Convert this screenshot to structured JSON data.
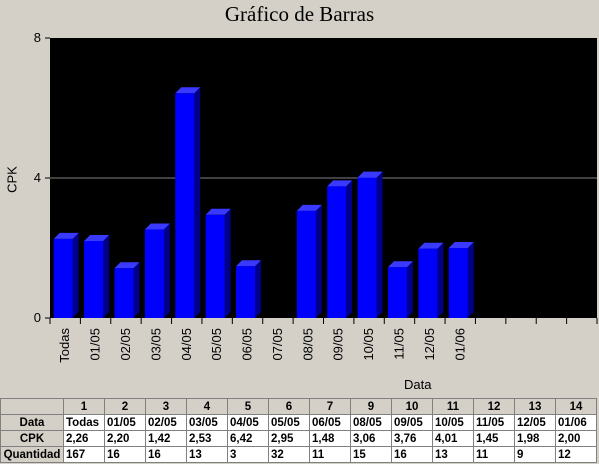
{
  "chart_data": {
    "type": "bar",
    "title": "Gráfico de Barras",
    "xlabel": "Data",
    "ylabel": "CPK",
    "ylim": [
      0,
      8
    ],
    "yticks": [
      0,
      4,
      8
    ],
    "categories": [
      "Todas",
      "01/05",
      "02/05",
      "03/05",
      "04/05",
      "05/05",
      "06/05",
      "07/05",
      "08/05",
      "09/05",
      "10/05",
      "11/05",
      "12/05",
      "01/06",
      "",
      "",
      "",
      ""
    ],
    "values": [
      2.26,
      2.2,
      1.42,
      2.53,
      6.42,
      2.95,
      1.48,
      null,
      3.06,
      3.76,
      4.01,
      1.45,
      1.98,
      2.0,
      null,
      null,
      null,
      null
    ],
    "colors": {
      "plot_bg": "#000000",
      "bar": "#0000ff",
      "bar_side": "#00008b",
      "bar_top": "#3a3aff",
      "grid": "#808080"
    }
  },
  "table": {
    "row_headers": [
      "Data",
      "CPK",
      "Quantidad"
    ],
    "columns": [
      {
        "n": "1",
        "data": "Todas",
        "cpk": "2,26",
        "qtd": "167"
      },
      {
        "n": "2",
        "data": "01/05",
        "cpk": "2,20",
        "qtd": "16"
      },
      {
        "n": "3",
        "data": "02/05",
        "cpk": "1,42",
        "qtd": "16"
      },
      {
        "n": "4",
        "data": "03/05",
        "cpk": "2,53",
        "qtd": "13"
      },
      {
        "n": "5",
        "data": "04/05",
        "cpk": "6,42",
        "qtd": "3"
      },
      {
        "n": "6",
        "data": "05/05",
        "cpk": "2,95",
        "qtd": "32"
      },
      {
        "n": "7",
        "data": "06/05",
        "cpk": "1,48",
        "qtd": "11"
      },
      {
        "n": "9",
        "data": "08/05",
        "cpk": "3,06",
        "qtd": "15"
      },
      {
        "n": "10",
        "data": "09/05",
        "cpk": "3,76",
        "qtd": "16"
      },
      {
        "n": "11",
        "data": "10/05",
        "cpk": "4,01",
        "qtd": "13"
      },
      {
        "n": "12",
        "data": "11/05",
        "cpk": "1,45",
        "qtd": "11"
      },
      {
        "n": "13",
        "data": "12/05",
        "cpk": "1,98",
        "qtd": "9"
      },
      {
        "n": "14",
        "data": "01/06",
        "cpk": "2,00",
        "qtd": "12"
      }
    ]
  }
}
